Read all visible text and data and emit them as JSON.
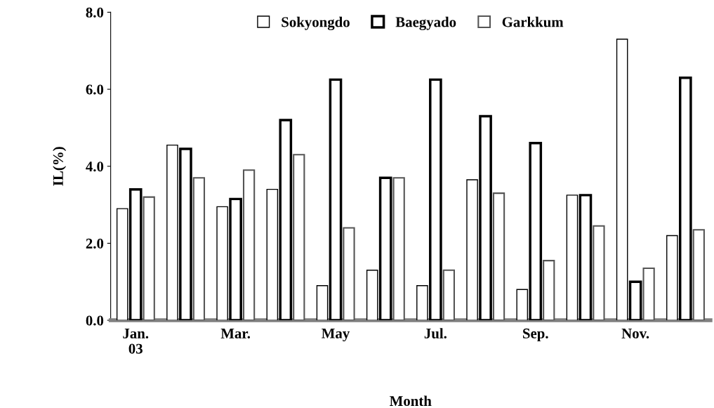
{
  "chart_data": {
    "type": "bar",
    "xlabel": "Month",
    "ylabel": "IL(%)",
    "categories": [
      "Jan.\n03",
      null,
      "Mar.",
      null,
      "May",
      null,
      "Jul.",
      null,
      "Sep.",
      null,
      "Nov.",
      null
    ],
    "series": [
      {
        "name": "Sokyongdo",
        "color": "#ffffff",
        "values": [
          2.9,
          4.55,
          2.95,
          3.4,
          0.9,
          1.3,
          0.9,
          3.65,
          0.8,
          3.25,
          7.3,
          2.2
        ]
      },
      {
        "name": "Baegyado",
        "color": "#ffffff",
        "values": [
          3.4,
          4.45,
          3.15,
          5.2,
          6.25,
          3.7,
          6.25,
          5.3,
          4.6,
          3.25,
          1.0,
          6.3
        ]
      },
      {
        "name": "Garkkum",
        "color": "#ffffff",
        "values": [
          3.2,
          3.7,
          3.9,
          4.3,
          2.4,
          3.7,
          1.3,
          3.3,
          1.55,
          2.45,
          1.35,
          2.35
        ]
      }
    ],
    "ylim": [
      0,
      8
    ],
    "yticks": [
      {
        "value": 0,
        "label": "0.0"
      },
      {
        "value": 2,
        "label": "2.0"
      },
      {
        "value": 4,
        "label": "4.0"
      },
      {
        "value": 6,
        "label": "6.0"
      },
      {
        "value": 8,
        "label": "8.0"
      }
    ],
    "legend": "top",
    "grid": false
  }
}
